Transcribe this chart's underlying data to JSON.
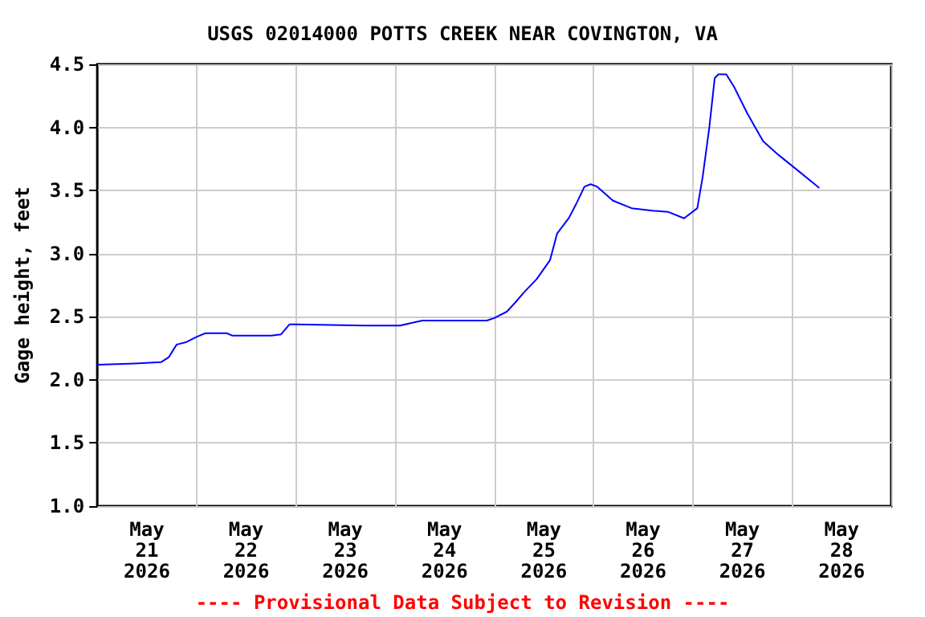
{
  "chart_data": {
    "type": "line",
    "title": "USGS 02014000 POTTS CREEK NEAR COVINGTON, VA",
    "ylabel": "Gage height, feet",
    "annotations": [
      "---- Provisional Data Subject to Revision ----"
    ],
    "x": [
      "2026-05-21T00:00",
      "2026-05-21T09:00",
      "2026-05-21T15:24",
      "2026-05-21T17:18",
      "2026-05-21T19:12",
      "2026-05-21T21:36",
      "2026-05-22T00:00",
      "2026-05-22T02:12",
      "2026-05-22T07:18",
      "2026-05-22T08:42",
      "2026-05-22T18:06",
      "2026-05-22T20:24",
      "2026-05-22T22:30",
      "2026-05-23T00:00",
      "2026-05-23T16:42",
      "2026-05-24T01:12",
      "2026-05-24T06:36",
      "2026-05-24T22:12",
      "2026-05-25T00:00",
      "2026-05-25T03:00",
      "2026-05-25T05:00",
      "2026-05-25T07:06",
      "2026-05-25T10:18",
      "2026-05-25T13:30",
      "2026-05-25T15:12",
      "2026-05-25T18:00",
      "2026-05-25T19:54",
      "2026-05-25T21:48",
      "2026-05-25T23:18",
      "2026-05-26T00:54",
      "2026-05-26T04:42",
      "2026-05-26T09:12",
      "2026-05-26T14:18",
      "2026-05-26T18:06",
      "2026-05-26T21:54",
      "2026-05-27T01:06",
      "2026-05-27T02:24",
      "2026-05-27T04:00",
      "2026-05-27T05:18",
      "2026-05-27T06:12",
      "2026-05-27T08:06",
      "2026-05-27T10:00",
      "2026-05-27T13:12",
      "2026-05-27T17:00",
      "2026-05-27T20:48",
      "2026-05-28T00:36",
      "2026-05-28T06:36"
    ],
    "series": [
      {
        "color": "#0000ff",
        "values": [
          2.12,
          2.13,
          2.14,
          2.18,
          2.28,
          2.3,
          2.34,
          2.37,
          2.37,
          2.35,
          2.35,
          2.36,
          2.44,
          2.44,
          2.43,
          2.43,
          2.47,
          2.47,
          2.49,
          2.54,
          2.61,
          2.69,
          2.8,
          2.95,
          3.16,
          3.28,
          3.4,
          3.53,
          3.55,
          3.53,
          3.42,
          3.36,
          3.34,
          3.33,
          3.28,
          3.36,
          3.61,
          4.0,
          4.39,
          4.42,
          4.42,
          4.32,
          4.11,
          3.89,
          3.78,
          3.68,
          3.52
        ]
      }
    ],
    "xlim": [
      "2026-05-21T00:00",
      "2026-05-29T00:00"
    ],
    "xticks": [
      {
        "value": "2026-05-21T12:00",
        "label": "May\n21\n2026"
      },
      {
        "value": "2026-05-22T12:00",
        "label": "May\n22\n2026"
      },
      {
        "value": "2026-05-23T12:00",
        "label": "May\n23\n2026"
      },
      {
        "value": "2026-05-24T12:00",
        "label": "May\n24\n2026"
      },
      {
        "value": "2026-05-25T12:00",
        "label": "May\n25\n2026"
      },
      {
        "value": "2026-05-26T12:00",
        "label": "May\n26\n2026"
      },
      {
        "value": "2026-05-27T12:00",
        "label": "May\n27\n2026"
      },
      {
        "value": "2026-05-28T12:00",
        "label": "May\n28\n2026"
      }
    ],
    "ylim": [
      1.0,
      4.5
    ],
    "yticks": [
      {
        "value": 1.0,
        "label": "1.0"
      },
      {
        "value": 1.5,
        "label": "1.5"
      },
      {
        "value": 2.0,
        "label": "2.0"
      },
      {
        "value": 2.5,
        "label": "2.5"
      },
      {
        "value": 3.0,
        "label": "3.0"
      },
      {
        "value": 3.5,
        "label": "3.5"
      },
      {
        "value": 4.0,
        "label": "4.0"
      },
      {
        "value": 4.5,
        "label": "4.5"
      }
    ],
    "grid": true,
    "marker": "none",
    "line_style": "solid"
  }
}
